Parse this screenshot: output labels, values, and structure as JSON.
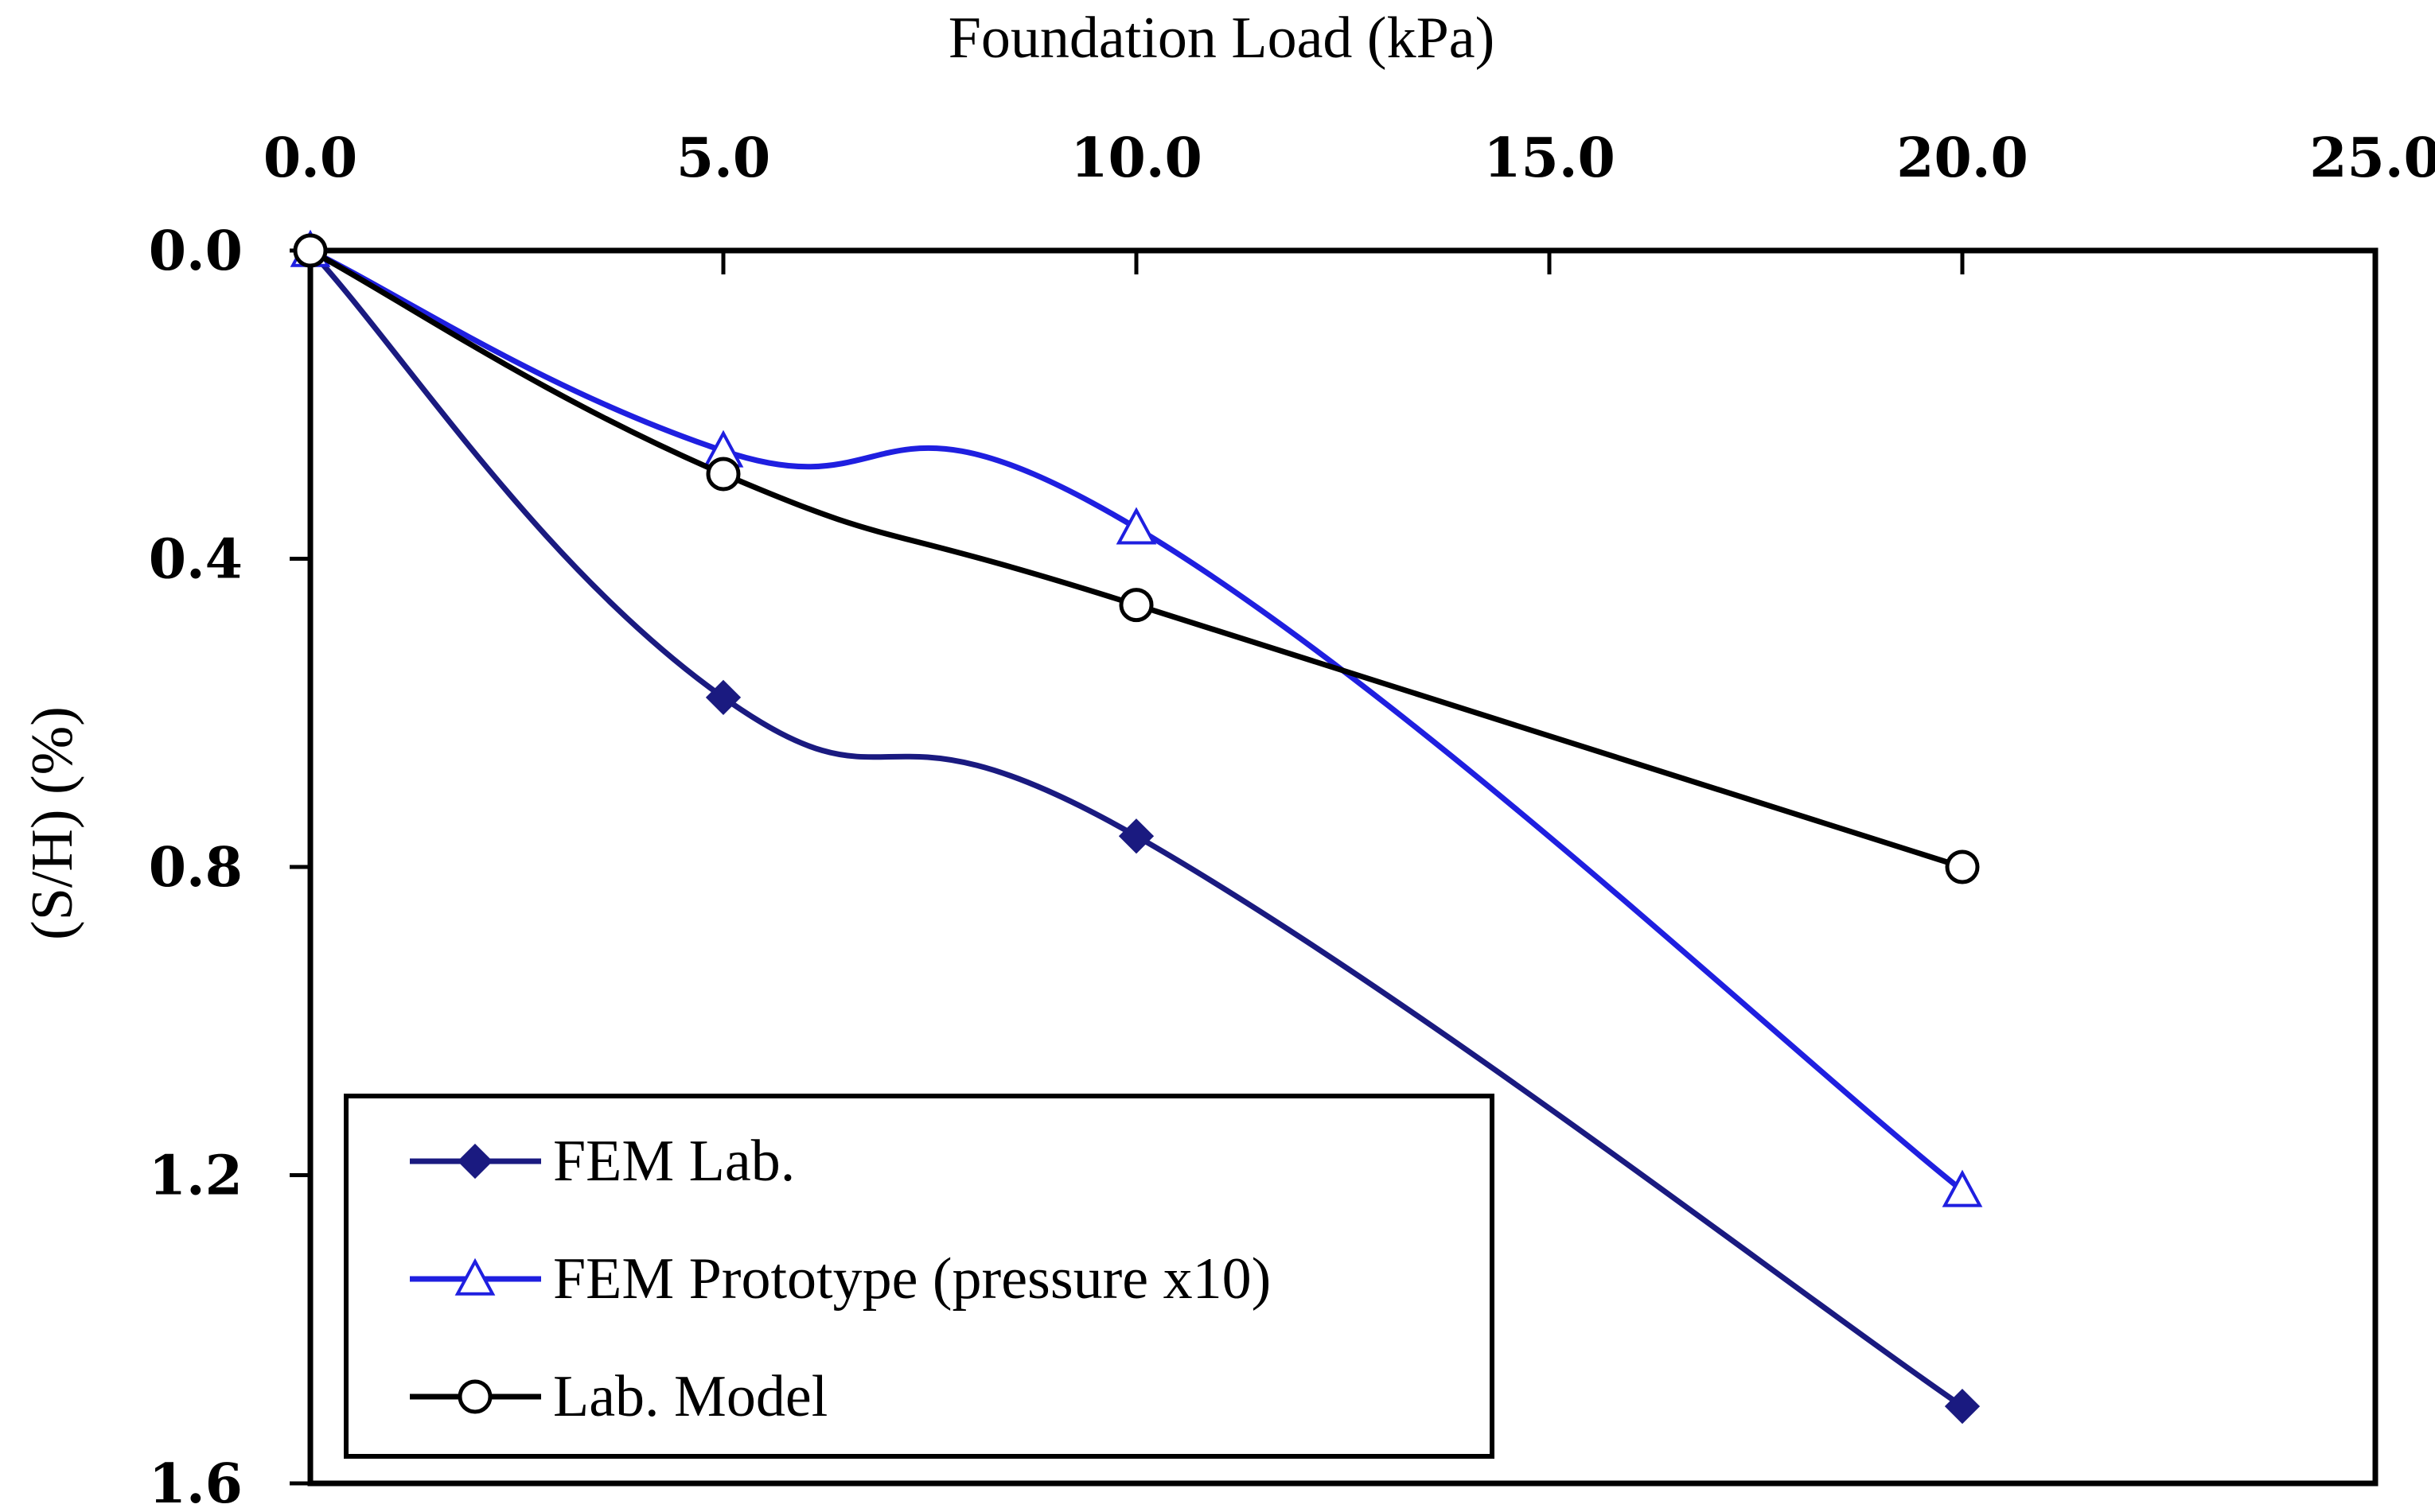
{
  "chart_data": {
    "type": "line",
    "title": "",
    "xlabel": "Foundation Load (kPa)",
    "ylabel": "(S/H) (%)",
    "xlim": [
      0,
      25
    ],
    "ylim": [
      0,
      1.6
    ],
    "y_inverted": true,
    "x_axis_position": "top",
    "x_ticks": [
      "0.0",
      "5.0",
      "10.0",
      "15.0",
      "20.0",
      "25.0"
    ],
    "y_ticks": [
      "0.0",
      "0.4",
      "0.8",
      "1.2",
      "1.6"
    ],
    "x_tick_values": [
      0,
      5,
      10,
      15,
      20,
      25
    ],
    "y_tick_values": [
      0,
      0.4,
      0.8,
      1.2,
      1.6
    ],
    "legend_position": "bottom-left",
    "series": [
      {
        "name": "FEM Lab.",
        "color": "#1a1a80",
        "marker": "filled-diamond",
        "x": [
          0,
          5,
          10,
          20
        ],
        "y": [
          0,
          0.58,
          0.76,
          1.5
        ]
      },
      {
        "name": "FEM Prototype (pressure x10)",
        "color": "#1f1fe0",
        "marker": "open-triangle",
        "x": [
          0,
          5,
          10,
          20
        ],
        "y": [
          0,
          0.26,
          0.36,
          1.22
        ]
      },
      {
        "name": "Lab. Model",
        "color": "#000000",
        "marker": "open-circle",
        "x": [
          0,
          5,
          10,
          20
        ],
        "y": [
          0,
          0.29,
          0.46,
          0.8
        ]
      }
    ]
  }
}
